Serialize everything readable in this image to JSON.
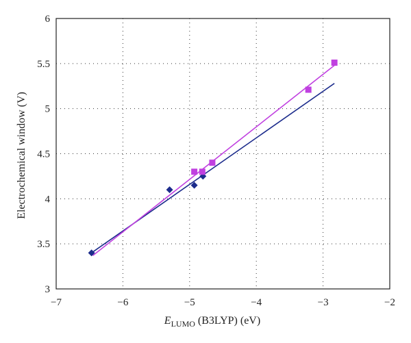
{
  "chart_data": {
    "type": "scatter",
    "xlabel_main": "E",
    "xlabel_sub": "LUMO",
    "xlabel_rest": " (B3LYP) (eV)",
    "ylabel": "Electrochemical window (V)",
    "xlim": [
      -7,
      -2
    ],
    "ylim": [
      3,
      6
    ],
    "xticks": [
      -7,
      -6,
      -5,
      -4,
      -3,
      -2
    ],
    "yticks": [
      3,
      3.5,
      4,
      4.5,
      5,
      5.5,
      6
    ],
    "xtick_labels": [
      "−7",
      "−6",
      "−5",
      "−4",
      "−3",
      "−2"
    ],
    "ytick_labels": [
      "3",
      "3.5",
      "4",
      "4.5",
      "5",
      "5.5",
      "6"
    ],
    "grid": true,
    "series": [
      {
        "marker": "diamond",
        "color": "#1c2c8c",
        "points": [
          [
            -6.47,
            3.4
          ],
          [
            -5.3,
            4.1
          ],
          [
            -4.93,
            4.15
          ],
          [
            -4.8,
            4.25
          ]
        ],
        "fit": [
          [
            -6.47,
            3.4
          ],
          [
            -2.83,
            5.28
          ]
        ]
      },
      {
        "marker": "square",
        "color": "#c040e0",
        "points": [
          [
            -4.93,
            4.3
          ],
          [
            -4.81,
            4.3
          ],
          [
            -4.66,
            4.4
          ],
          [
            -3.22,
            5.21
          ],
          [
            -2.83,
            5.51
          ]
        ],
        "fit": [
          [
            -6.45,
            3.37
          ],
          [
            -2.83,
            5.48
          ]
        ]
      }
    ]
  }
}
